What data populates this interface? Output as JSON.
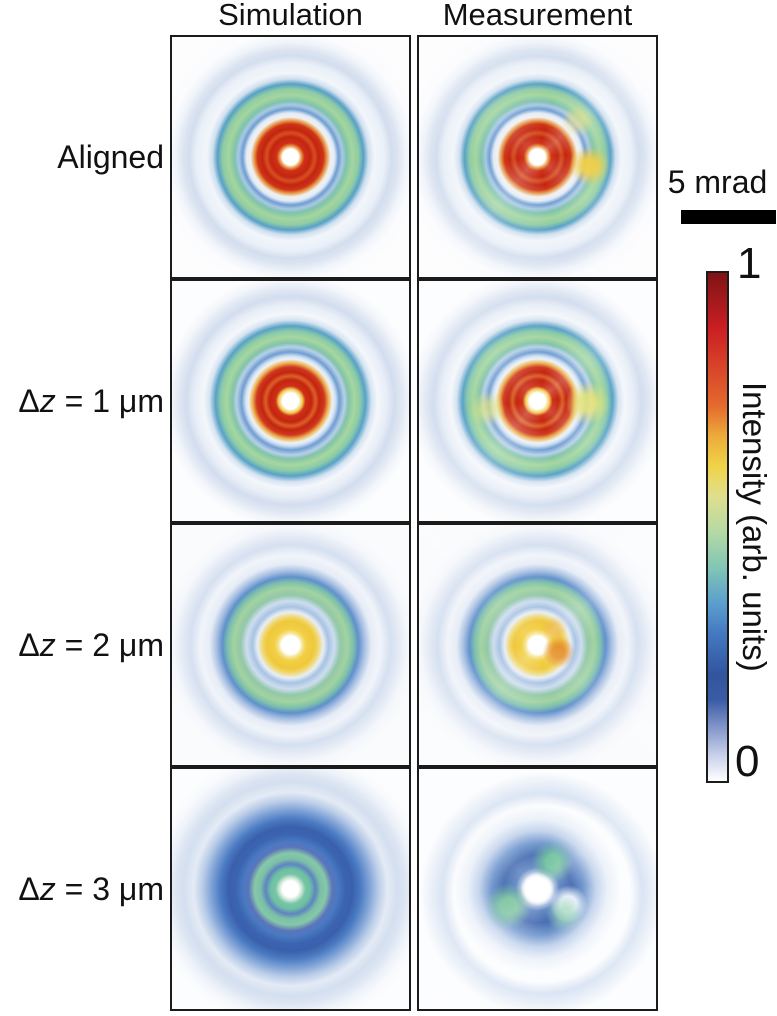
{
  "figure": {
    "columns": [
      {
        "label": "Simulation"
      },
      {
        "label": "Measurement"
      }
    ],
    "rows": [
      {
        "label_rest": "Aligned"
      },
      {
        "label_delta": "Δ",
        "label_var": "z",
        "label_rest": " = 1 μm"
      },
      {
        "label_delta": "Δ",
        "label_var": "z",
        "label_rest": " = 2 μm"
      },
      {
        "label_delta": "Δ",
        "label_var": "z",
        "label_rest": " = 3 μm"
      }
    ],
    "scale_bar": {
      "label": "5 mrad"
    },
    "colorbar": {
      "title": "Intensity (arb. units)",
      "max_label": "1",
      "min_label": "0",
      "gradient_top_to_bottom": [
        "#7f1315 0%",
        "#cb1f24 11%",
        "#e4692e 26%",
        "#ecaa3a 32%",
        "#f0d348 38%",
        "#dfdf8e 44%",
        "#b4d9a5 51%",
        "#81c6b4 58%",
        "#5b9fce 65%",
        "#4479c1 71%",
        "#32559e 79%",
        "#3a5ca6 84%",
        "#8a9ccd 90%",
        "#c9d1ea 95%",
        "#ffffff 100%"
      ]
    },
    "panels": [
      {
        "id": "aligned-simulation",
        "row": "Aligned",
        "column": "Simulation",
        "appearance": "sharp concentric rings: white core, intense red annulus, thin blue ring, green annulus with teal edges, faint pale-blue outer halo"
      },
      {
        "id": "aligned-measurement",
        "row": "Aligned",
        "column": "Measurement",
        "appearance": "same ring pattern but noisy, with yellow hot-spots on the right side of the green annulus"
      },
      {
        "id": "dz1-simulation",
        "row": "Δz = 1 μm",
        "column": "Simulation",
        "appearance": "white core, red annulus with yellow inner rim, thin blue ring, green annulus, faint outer halo"
      },
      {
        "id": "dz1-measurement",
        "row": "Δz = 1 μm",
        "column": "Measurement",
        "appearance": "noisy rings with yellow-green arcs on left and right of the green annulus"
      },
      {
        "id": "dz2-simulation",
        "row": "Δz = 2 μm",
        "column": "Simulation",
        "appearance": "white core, yellow annulus, pale blue ring, green annulus, blue ring, faint outer halo"
      },
      {
        "id": "dz2-measurement",
        "row": "Δz = 2 μm",
        "column": "Measurement",
        "appearance": "noisy version with orange patch on the right of the yellow annulus and patchy green ring"
      },
      {
        "id": "dz3-simulation",
        "row": "Δz = 3 μm",
        "column": "Simulation",
        "appearance": "white core, two green rings embedded in a broad dark-blue annulus, faint pale-blue outer halo"
      },
      {
        "id": "dz3-measurement",
        "row": "Δz = 3 μm",
        "column": "Measurement",
        "appearance": "distorted swirl of blue and green arcs around a white core, faint irregular outer halo"
      }
    ],
    "palette": {
      "red": "#c2250f",
      "orange": "#e4692e",
      "yellow": "#f0d348",
      "green": "#a4d69d",
      "teal": "#7cc5b7",
      "blue": "#4479c1",
      "navy": "#32559e",
      "pale_blue": "#d3deee",
      "black": "#000000"
    }
  }
}
